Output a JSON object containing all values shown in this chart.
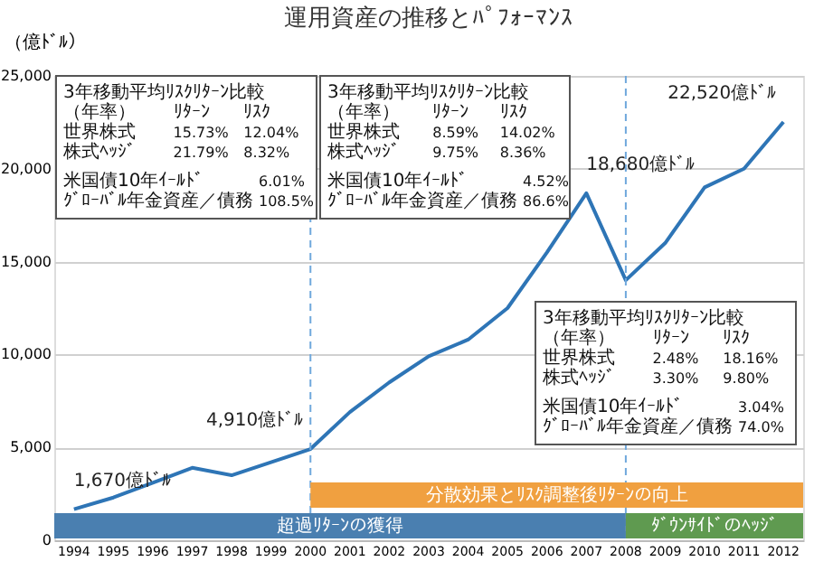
{
  "chart_data": {
    "type": "line",
    "title": "運用資産の推移とﾊﾟﾌｫｰﾏﾝｽ",
    "ylabel": "（億ﾄﾞﾙ）",
    "categories": [
      "1994",
      "1995",
      "1996",
      "1997",
      "1998",
      "1999",
      "2000",
      "2001",
      "2002",
      "2003",
      "2004",
      "2005",
      "2006",
      "2007",
      "2008",
      "2009",
      "2010",
      "2011",
      "2012"
    ],
    "series": [
      {
        "color": "#2e75b6",
        "values": [
          1670,
          2300,
          3100,
          3900,
          3500,
          4200,
          4910,
          6900,
          8500,
          9900,
          10800,
          12500,
          15500,
          18680,
          14000,
          16000,
          19000,
          20000,
          22520
        ],
        "value_labels": [
          "1,670億ﾄﾞﾙ",
          null,
          null,
          null,
          null,
          null,
          "4,910億ﾄﾞﾙ",
          null,
          null,
          null,
          null,
          null,
          null,
          "18,680億ﾄﾞﾙ",
          null,
          null,
          null,
          null,
          "22,520億ﾄﾞﾙ"
        ]
      }
    ],
    "ylim": [
      0,
      25000
    ],
    "yticks": [
      0,
      {
        "value": 5000,
        "label": "5,000"
      },
      {
        "value": 10000,
        "label": "10,000"
      },
      {
        "value": 15000,
        "label": "15,000"
      },
      {
        "value": 20000,
        "label": "20,000"
      },
      {
        "value": 25000,
        "label": "25,000"
      }
    ],
    "grid": "y",
    "ref_lines": [
      {
        "axis": "x",
        "value": "2000",
        "color": "#6fa8dc",
        "line_style": "dashed"
      },
      {
        "axis": "x",
        "value": "2008",
        "color": "#6fa8dc",
        "line_style": "dashed"
      }
    ],
    "bands": [
      {
        "axis": "x",
        "from": "1994",
        "to": "2008",
        "label": "超過ﾘﾀｰﾝの獲得",
        "color": "#4a7fb0"
      },
      {
        "axis": "x",
        "from": "2000",
        "to": "2012",
        "label": "分散効果とﾘｽｸ調整後ﾘﾀｰﾝの向上",
        "color": "#f0a040"
      },
      {
        "axis": "x",
        "from": "2008",
        "to": "2012",
        "label": "ﾀﾞｳﾝｻｲﾄﾞのﾍｯｼﾞ",
        "color": "#5f9a50"
      }
    ],
    "annotations": [
      "3年移動平均ﾘｽｸﾘﾀｰﾝ比較",
      "（年率）  ﾘﾀｰﾝ  ﾘｽｸ",
      "世界株式  15.73%  12.04%",
      "株式ﾍｯｼﾞ  21.79%  8.32%",
      "米国債10年ｲｰﾙﾄﾞ  6.01%",
      "ｸﾞﾛｰﾊﾞﾙ年金資産／債務  108.5%",
      "3年移動平均ﾘｽｸﾘﾀｰﾝ比較",
      "（年率）  ﾘﾀｰﾝ  ﾘｽｸ",
      "世界株式  8.59%  14.02%",
      "株式ﾍｯｼﾞ  9.75%  8.36%",
      "米国債10年ｲｰﾙﾄﾞ  4.52%",
      "ｸﾞﾛｰﾊﾞﾙ年金資産／債務  86.6%",
      "3年移動平均ﾘｽｸﾘﾀｰﾝ比較",
      "（年率）  ﾘﾀｰﾝ  ﾘｽｸ",
      "世界株式  2.48%  18.16%",
      "株式ﾍｯｼﾞ  3.30%  9.80%",
      "米国債10年ｲｰﾙﾄﾞ  3.04%",
      "ｸﾞﾛｰﾊﾞﾙ年金資産／債務  74.0%"
    ]
  }
}
